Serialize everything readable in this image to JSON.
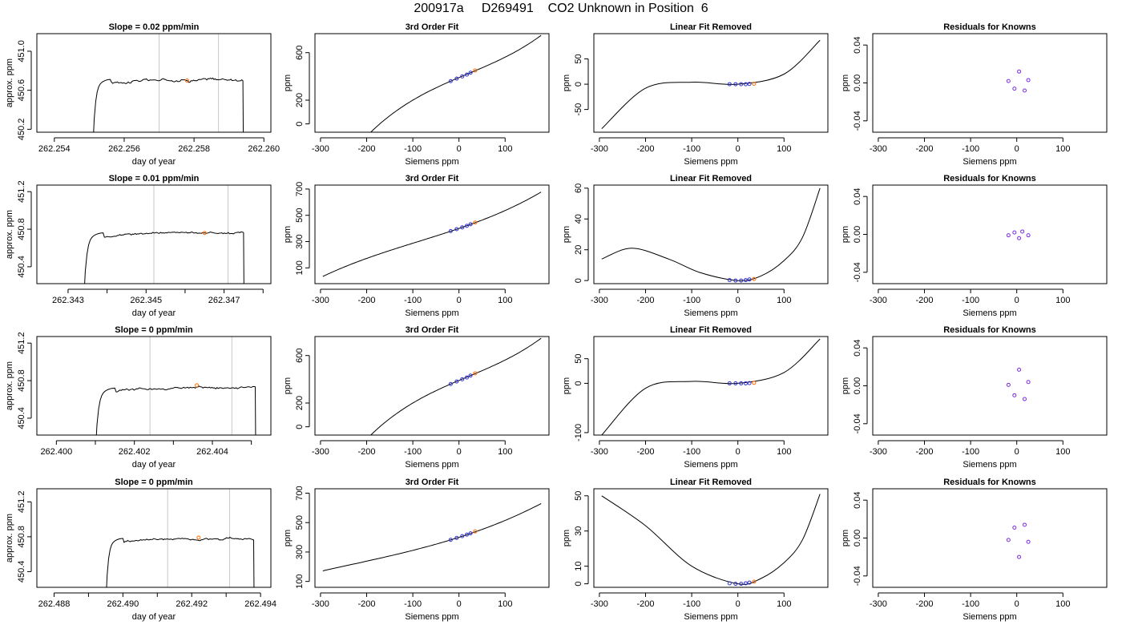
{
  "page": {
    "title": "200917a     D269491    CO2 Unknown in Position  6"
  },
  "theme": {
    "line_color": "#000000",
    "grid_line_color": "#c8c8c8",
    "known_point_color": "#3030d0",
    "unknown_point_color": "#ff6a00",
    "residual_point_color": "#7a2be0"
  },
  "chart_data": [
    {
      "type": "line",
      "row": 0,
      "panel": "timeseries",
      "title": "Slope =  0.02  ppm/min",
      "xlabel": "day of year",
      "ylabel": "approx. ppm",
      "xlim": [
        262.2535,
        262.2602
      ],
      "ylim": [
        450.17,
        451.18
      ],
      "xticks": [
        "262.254",
        "262.256",
        "262.258",
        "262.260"
      ],
      "xtick_values": [
        262.254,
        262.256,
        262.258,
        262.26
      ],
      "yticks": [
        "450.2",
        "450.6",
        "451.0"
      ],
      "ytick_values": [
        450.2,
        450.6,
        451.0
      ],
      "vlines": [
        262.257,
        262.2587
      ],
      "trace": {
        "start": 262.2551,
        "rise_end": 262.2556,
        "end": 262.2594,
        "level": 450.71,
        "noise": 0.02
      },
      "unknown_point": {
        "x": 262.2578,
        "y": 450.7
      }
    },
    {
      "type": "line",
      "row": 0,
      "panel": "fit3",
      "title": "3rd Order Fit",
      "xlabel": "Siemens ppm",
      "ylabel": "ppm",
      "xlim": [
        -312,
        195
      ],
      "ylim": [
        -70,
        760
      ],
      "xticks": [
        "-300",
        "-200",
        "-100",
        "0",
        "100"
      ],
      "xtick_values": [
        -300,
        -200,
        -100,
        0,
        100
      ],
      "yticks": [
        "0",
        "200",
        "600"
      ],
      "ytick_values": [
        0,
        200,
        600
      ],
      "curve": {
        "coef": [
          390,
          1.65,
          -0.0009,
          1.6e-05
        ],
        "x_range": [
          -295,
          178
        ]
      },
      "known_points": [
        {
          "x": -18,
          "y": 360
        },
        {
          "x": -5,
          "y": 381
        },
        {
          "x": 7,
          "y": 400
        },
        {
          "x": 17,
          "y": 415
        },
        {
          "x": 25,
          "y": 431
        }
      ],
      "unknown_point": {
        "x": 35,
        "y": 450
      }
    },
    {
      "type": "line",
      "row": 0,
      "panel": "linear_removed",
      "title": "Linear Fit Removed",
      "xlabel": "Siemens ppm",
      "ylabel": "ppm",
      "xlim": [
        -312,
        195
      ],
      "ylim": [
        -95,
        100
      ],
      "xticks": [
        "-300",
        "-200",
        "-100",
        "0",
        "100"
      ],
      "xtick_values": [
        -300,
        -200,
        -100,
        0,
        100
      ],
      "yticks": [
        "-50",
        "0",
        "50"
      ],
      "ytick_values": [
        -50,
        0,
        50
      ],
      "curve": {
        "points": [
          [
            -295,
            -88
          ],
          [
            -200,
            -8
          ],
          [
            -100,
            4
          ],
          [
            0,
            0
          ],
          [
            100,
            20
          ],
          [
            178,
            87
          ]
        ]
      },
      "known_points": [
        {
          "x": -18,
          "y": 0
        },
        {
          "x": -5,
          "y": 0
        },
        {
          "x": 7,
          "y": 0
        },
        {
          "x": 17,
          "y": 0
        },
        {
          "x": 25,
          "y": 0.5
        }
      ],
      "unknown_point": {
        "x": 35,
        "y": 1
      }
    },
    {
      "type": "scatter",
      "row": 0,
      "panel": "residuals",
      "title": "Residuals for Knowns",
      "xlabel": "Siemens ppm",
      "ylabel": "ppm",
      "xlim": [
        -312,
        195
      ],
      "ylim": [
        -0.052,
        0.052
      ],
      "xticks": [
        "-300",
        "-200",
        "-100",
        "0",
        "100"
      ],
      "xtick_values": [
        -300,
        -200,
        -100,
        0,
        100
      ],
      "yticks": [
        "-0.04",
        "0.00",
        "0.04"
      ],
      "ytick_values": [
        -0.04,
        0.0,
        0.04
      ],
      "points": [
        {
          "x": -18,
          "y": 0.002
        },
        {
          "x": -5,
          "y": -0.006
        },
        {
          "x": 5,
          "y": 0.012
        },
        {
          "x": 17,
          "y": -0.008
        },
        {
          "x": 25,
          "y": 0.003
        }
      ]
    },
    {
      "type": "line",
      "row": 1,
      "panel": "timeseries",
      "title": "Slope =  0.01  ppm/min",
      "xlabel": "day of year",
      "ylabel": "approx. ppm",
      "xlim": [
        262.3422,
        262.3482
      ],
      "ylim": [
        450.22,
        451.27
      ],
      "xticks": [
        "262.343",
        "262.345",
        "262.347"
      ],
      "xtick_values": [
        262.343,
        262.345,
        262.347
      ],
      "minor_xticks": [
        262.344,
        262.346,
        262.348
      ],
      "yticks": [
        "450.4",
        "450.8",
        "451.2"
      ],
      "ytick_values": [
        450.4,
        450.8,
        451.2
      ],
      "vlines": [
        262.3452,
        262.3471
      ],
      "trace": {
        "start": 262.3434,
        "rise_end": 262.3439,
        "end": 262.3475,
        "level": 450.76,
        "noise": 0.015
      },
      "unknown_point": {
        "x": 262.3465,
        "y": 450.76
      }
    },
    {
      "type": "line",
      "row": 1,
      "panel": "fit3",
      "title": "3rd Order Fit",
      "xlabel": "Siemens ppm",
      "ylabel": "ppm",
      "xlim": [
        -312,
        195
      ],
      "ylim": [
        -20,
        730
      ],
      "xticks": [
        "-300",
        "-200",
        "-100",
        "0",
        "100"
      ],
      "xtick_values": [
        -300,
        -200,
        -100,
        0,
        100
      ],
      "yticks": [
        "100",
        "300",
        "500",
        "700"
      ],
      "ytick_values": [
        100,
        300,
        500,
        700
      ],
      "curve": {
        "coef": [
          400,
          1.2,
          0.0012,
          4.5e-06
        ],
        "x_range": [
          -295,
          178
        ]
      },
      "known_points": [
        {
          "x": -18,
          "y": 380
        },
        {
          "x": -5,
          "y": 395
        },
        {
          "x": 7,
          "y": 408
        },
        {
          "x": 17,
          "y": 420
        },
        {
          "x": 25,
          "y": 432
        }
      ],
      "unknown_point": {
        "x": 35,
        "y": 445
      }
    },
    {
      "type": "line",
      "row": 1,
      "panel": "linear_removed",
      "title": "Linear Fit Removed",
      "xlabel": "Siemens ppm",
      "ylabel": "ppm",
      "xlim": [
        -312,
        195
      ],
      "ylim": [
        -2,
        62
      ],
      "xticks": [
        "-300",
        "-200",
        "-100",
        "0",
        "100"
      ],
      "xtick_values": [
        -300,
        -200,
        -100,
        0,
        100
      ],
      "yticks": [
        "0",
        "20",
        "40",
        "60"
      ],
      "ytick_values": [
        0,
        20,
        40,
        60
      ],
      "curve": {
        "points": [
          [
            -295,
            14
          ],
          [
            -230,
            21
          ],
          [
            -150,
            14
          ],
          [
            -80,
            5
          ],
          [
            0,
            0
          ],
          [
            50,
            3
          ],
          [
            100,
            13
          ],
          [
            140,
            28
          ],
          [
            178,
            60
          ]
        ]
      },
      "known_points": [
        {
          "x": -18,
          "y": 0.3
        },
        {
          "x": -5,
          "y": 0
        },
        {
          "x": 7,
          "y": 0
        },
        {
          "x": 17,
          "y": 0.3
        },
        {
          "x": 25,
          "y": 0.7
        }
      ],
      "unknown_point": {
        "x": 35,
        "y": 1
      }
    },
    {
      "type": "scatter",
      "row": 1,
      "panel": "residuals",
      "title": "Residuals for Knowns",
      "xlabel": "Siemens ppm",
      "ylabel": "ppm",
      "xlim": [
        -312,
        195
      ],
      "ylim": [
        -0.052,
        0.052
      ],
      "xticks": [
        "-300",
        "-200",
        "-100",
        "0",
        "100"
      ],
      "xtick_values": [
        -300,
        -200,
        -100,
        0,
        100
      ],
      "yticks": [
        "-0.04",
        "0.00",
        "0.04"
      ],
      "ytick_values": [
        -0.04,
        0.0,
        0.04
      ],
      "points": [
        {
          "x": -18,
          "y": -0.001
        },
        {
          "x": -5,
          "y": 0.002
        },
        {
          "x": 5,
          "y": -0.004
        },
        {
          "x": 12,
          "y": 0.003
        },
        {
          "x": 25,
          "y": -0.001
        }
      ]
    },
    {
      "type": "line",
      "row": 2,
      "panel": "timeseries",
      "title": "Slope =  0  ppm/min",
      "xlabel": "day of year",
      "ylabel": "approx. ppm",
      "xlim": [
        262.3995,
        262.4055
      ],
      "ylim": [
        450.22,
        451.27
      ],
      "xticks": [
        "262.400",
        "262.402",
        "262.404"
      ],
      "xtick_values": [
        262.4,
        262.402,
        262.404
      ],
      "minor_xticks": [
        262.401,
        262.403,
        262.405
      ],
      "yticks": [
        "450.4",
        "450.8",
        "451.2"
      ],
      "ytick_values": [
        450.4,
        450.8,
        451.2
      ],
      "vlines": [
        262.4024,
        262.4045
      ],
      "trace": {
        "start": 262.401,
        "rise_end": 262.4015,
        "end": 262.4051,
        "level": 450.72,
        "noise": 0.015
      },
      "unknown_point": {
        "x": 262.4036,
        "y": 450.75
      }
    },
    {
      "type": "line",
      "row": 2,
      "panel": "fit3",
      "title": "3rd Order Fit",
      "xlabel": "Siemens ppm",
      "ylabel": "ppm",
      "xlim": [
        -312,
        195
      ],
      "ylim": [
        -70,
        760
      ],
      "xticks": [
        "-300",
        "-200",
        "-100",
        "0",
        "100"
      ],
      "xtick_values": [
        -300,
        -200,
        -100,
        0,
        100
      ],
      "yticks": [
        "0",
        "200",
        "600"
      ],
      "ytick_values": [
        0,
        200,
        600
      ],
      "curve": {
        "coef": [
          390,
          1.65,
          -0.0009,
          1.6e-05
        ],
        "x_range": [
          -295,
          178
        ]
      },
      "known_points": [
        {
          "x": -18,
          "y": 360
        },
        {
          "x": -5,
          "y": 381
        },
        {
          "x": 7,
          "y": 400
        },
        {
          "x": 17,
          "y": 415
        },
        {
          "x": 25,
          "y": 431
        }
      ],
      "unknown_point": {
        "x": 35,
        "y": 450
      }
    },
    {
      "type": "line",
      "row": 2,
      "panel": "linear_removed",
      "title": "Linear Fit Removed",
      "xlabel": "Siemens ppm",
      "ylabel": "ppm",
      "xlim": [
        -312,
        195
      ],
      "ylim": [
        -105,
        95
      ],
      "xticks": [
        "-300",
        "-200",
        "-100",
        "0",
        "100"
      ],
      "xtick_values": [
        -300,
        -200,
        -100,
        0,
        100
      ],
      "yticks": [
        "-100",
        "0",
        "50"
      ],
      "ytick_values": [
        -100,
        0,
        50
      ],
      "curve": {
        "points": [
          [
            -295,
            -105
          ],
          [
            -200,
            -10
          ],
          [
            -100,
            4
          ],
          [
            0,
            0
          ],
          [
            100,
            22
          ],
          [
            178,
            90
          ]
        ]
      },
      "known_points": [
        {
          "x": -18,
          "y": 0
        },
        {
          "x": -5,
          "y": 0
        },
        {
          "x": 7,
          "y": 0
        },
        {
          "x": 17,
          "y": 0
        },
        {
          "x": 25,
          "y": 0.5
        }
      ],
      "unknown_point": {
        "x": 35,
        "y": 1
      }
    },
    {
      "type": "scatter",
      "row": 2,
      "panel": "residuals",
      "title": "Residuals for Knowns",
      "xlabel": "Siemens ppm",
      "ylabel": "ppm",
      "xlim": [
        -312,
        195
      ],
      "ylim": [
        -0.052,
        0.052
      ],
      "xticks": [
        "-300",
        "-200",
        "-100",
        "0",
        "100"
      ],
      "xtick_values": [
        -300,
        -200,
        -100,
        0,
        100
      ],
      "yticks": [
        "-0.04",
        "0.00",
        "0.04"
      ],
      "ytick_values": [
        -0.04,
        0.0,
        0.04
      ],
      "points": [
        {
          "x": -18,
          "y": 0.001
        },
        {
          "x": -5,
          "y": -0.01
        },
        {
          "x": 5,
          "y": 0.017
        },
        {
          "x": 17,
          "y": -0.014
        },
        {
          "x": 25,
          "y": 0.004
        }
      ]
    },
    {
      "type": "line",
      "row": 3,
      "panel": "timeseries",
      "title": "Slope =  0  ppm/min",
      "xlabel": "day of year",
      "ylabel": "approx. ppm",
      "xlim": [
        262.4875,
        262.4943
      ],
      "ylim": [
        450.22,
        451.35
      ],
      "xticks": [
        "262.488",
        "262.490",
        "262.492",
        "262.494"
      ],
      "xtick_values": [
        262.488,
        262.49,
        262.492,
        262.494
      ],
      "minor_xticks": [
        262.489,
        262.491,
        262.493
      ],
      "yticks": [
        "450.4",
        "450.8",
        "451.2"
      ],
      "ytick_values": [
        450.4,
        450.8,
        451.2
      ],
      "vlines": [
        262.4913,
        262.4931
      ],
      "trace": {
        "start": 262.4895,
        "rise_end": 262.49,
        "end": 262.4938,
        "level": 450.78,
        "noise": 0.015
      },
      "unknown_point": {
        "x": 262.4922,
        "y": 450.79
      }
    },
    {
      "type": "line",
      "row": 3,
      "panel": "fit3",
      "title": "3rd Order Fit",
      "xlabel": "Siemens ppm",
      "ylabel": "ppm",
      "xlim": [
        -312,
        195
      ],
      "ylim": [
        60,
        730
      ],
      "xticks": [
        "-300",
        "-200",
        "-100",
        "0",
        "100"
      ],
      "xtick_values": [
        -300,
        -200,
        -100,
        0,
        100
      ],
      "yticks": [
        "100",
        "300",
        "500",
        "700"
      ],
      "ytick_values": [
        100,
        300,
        500,
        700
      ],
      "curve": {
        "coef": [
          400,
          1.0,
          0.0013,
          1.8e-06
        ],
        "x_range": [
          -295,
          178
        ]
      },
      "known_points": [
        {
          "x": -18,
          "y": 383
        },
        {
          "x": -5,
          "y": 396
        },
        {
          "x": 7,
          "y": 408
        },
        {
          "x": 17,
          "y": 418
        },
        {
          "x": 25,
          "y": 427
        }
      ],
      "unknown_point": {
        "x": 35,
        "y": 440
      }
    },
    {
      "type": "line",
      "row": 3,
      "panel": "linear_removed",
      "title": "Linear Fit Removed",
      "xlabel": "Siemens ppm",
      "ylabel": "ppm",
      "xlim": [
        -312,
        195
      ],
      "ylim": [
        -2,
        54
      ],
      "xticks": [
        "-300",
        "-200",
        "-100",
        "0",
        "100"
      ],
      "xtick_values": [
        -300,
        -200,
        -100,
        0,
        100
      ],
      "yticks": [
        "0",
        "10",
        "30",
        "50"
      ],
      "ytick_values": [
        0,
        10,
        30,
        50
      ],
      "curve": {
        "points": [
          [
            -295,
            50
          ],
          [
            -200,
            33
          ],
          [
            -100,
            10
          ],
          [
            0,
            0
          ],
          [
            50,
            3
          ],
          [
            100,
            12
          ],
          [
            140,
            25
          ],
          [
            178,
            51
          ]
        ]
      },
      "known_points": [
        {
          "x": -18,
          "y": 0.3
        },
        {
          "x": -5,
          "y": 0
        },
        {
          "x": 7,
          "y": 0
        },
        {
          "x": 17,
          "y": 0.3
        },
        {
          "x": 25,
          "y": 0.7
        }
      ],
      "unknown_point": {
        "x": 35,
        "y": 1.2
      }
    },
    {
      "type": "scatter",
      "row": 3,
      "panel": "residuals",
      "title": "Residuals for Knowns",
      "xlabel": "Siemens ppm",
      "ylabel": "ppm",
      "xlim": [
        -312,
        195
      ],
      "ylim": [
        -0.052,
        0.052
      ],
      "xticks": [
        "-300",
        "-200",
        "-100",
        "0",
        "100"
      ],
      "xtick_values": [
        -300,
        -200,
        -100,
        0,
        100
      ],
      "yticks": [
        "-0.04",
        "0.00",
        "0.04"
      ],
      "ytick_values": [
        -0.04,
        0.0,
        0.04
      ],
      "points": [
        {
          "x": -18,
          "y": -0.002
        },
        {
          "x": -5,
          "y": 0.011
        },
        {
          "x": 5,
          "y": -0.02
        },
        {
          "x": 17,
          "y": 0.014
        },
        {
          "x": 25,
          "y": -0.004
        }
      ]
    }
  ]
}
